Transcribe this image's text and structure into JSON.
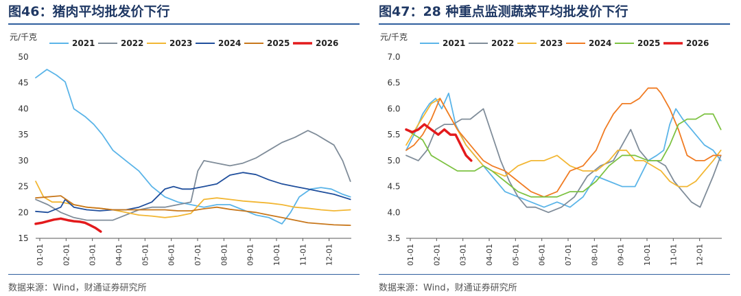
{
  "source_note": "数据来源：Wind，财通证券研究所",
  "chart_data": [
    {
      "type": "line",
      "title": "图46：猪肉平均批发价下行",
      "ylabel": "元/千克",
      "xlabel": "",
      "ylim": [
        15,
        50
      ],
      "yticks": [
        "15",
        "20",
        "25",
        "30",
        "35",
        "40",
        "45",
        "50"
      ],
      "xticks": [
        "01-01",
        "02-01",
        "03-01",
        "04-01",
        "05-01",
        "06-01",
        "07-01",
        "08-01",
        "09-01",
        "10-01",
        "11-01",
        "12-01"
      ],
      "legend_position": "top",
      "series": [
        {
          "name": "2021",
          "color": "#5ab4e8",
          "x": [
            1,
            14,
            25,
            35,
            45,
            58,
            68,
            78,
            90,
            105,
            120,
            135,
            150,
            165,
            180,
            195,
            210,
            225,
            240,
            255,
            270,
            285,
            295,
            305,
            318,
            330,
            342,
            355,
            364
          ],
          "values": [
            46,
            47.6,
            46.5,
            45.2,
            40,
            38.5,
            37,
            35,
            32,
            30,
            28,
            25,
            23,
            22,
            21.5,
            21,
            21.5,
            21.5,
            20.5,
            19.5,
            19,
            17.8,
            20,
            23,
            24.5,
            24.8,
            24.5,
            23.5,
            23
          ]
        },
        {
          "name": "2022",
          "color": "#7f8c99",
          "x": [
            1,
            15,
            30,
            45,
            60,
            75,
            90,
            105,
            120,
            135,
            150,
            165,
            180,
            188,
            195,
            210,
            225,
            240,
            255,
            270,
            285,
            300,
            315,
            325,
            335,
            345,
            355,
            364
          ],
          "values": [
            22.5,
            21.5,
            20,
            19,
            18.5,
            18.5,
            18.5,
            19.5,
            20.5,
            21,
            21,
            21.5,
            22,
            28,
            30,
            29.5,
            29,
            29.5,
            30.5,
            32,
            33.5,
            34.5,
            35.8,
            35,
            34,
            33,
            30,
            26
          ]
        },
        {
          "name": "2023",
          "color": "#f2b632",
          "x": [
            1,
            10,
            20,
            30,
            45,
            60,
            75,
            90,
            105,
            120,
            135,
            150,
            165,
            180,
            195,
            210,
            225,
            240,
            255,
            270,
            285,
            300,
            315,
            330,
            345,
            364
          ],
          "values": [
            26,
            23,
            22,
            22,
            21.5,
            21,
            20.8,
            20.5,
            20,
            19.5,
            19.3,
            19,
            19.3,
            19.8,
            22.5,
            22.8,
            22.5,
            22.2,
            22,
            21.8,
            21.5,
            21,
            20.8,
            20.5,
            20.3,
            20.5
          ]
        },
        {
          "name": "2024",
          "color": "#1f4e9c",
          "x": [
            1,
            15,
            30,
            35,
            45,
            60,
            75,
            90,
            105,
            120,
            135,
            150,
            160,
            170,
            180,
            195,
            210,
            225,
            240,
            255,
            270,
            285,
            300,
            315,
            330,
            345,
            364
          ],
          "values": [
            20.2,
            20,
            21,
            22.5,
            21,
            20.5,
            20.3,
            20.5,
            20.5,
            21,
            22,
            24.5,
            25,
            24.5,
            24.5,
            25,
            25.5,
            27.2,
            27.7,
            27.3,
            26.3,
            25.5,
            25,
            24.5,
            24,
            23.5,
            22.5
          ]
        },
        {
          "name": "2025",
          "color": "#c8771b",
          "x": [
            1,
            15,
            30,
            45,
            60,
            75,
            90,
            105,
            120,
            135,
            150,
            165,
            180,
            195,
            210,
            225,
            240,
            255,
            270,
            285,
            300,
            315,
            330,
            345,
            364
          ],
          "values": [
            22.8,
            23,
            23.2,
            21.5,
            21,
            20.8,
            20.5,
            20.5,
            20.5,
            20.5,
            20.5,
            20.3,
            20.3,
            20.7,
            21,
            20.6,
            20.3,
            20,
            19.5,
            19,
            18.5,
            18,
            17.8,
            17.6,
            17.5
          ]
        },
        {
          "name": "2026",
          "color": "#e31a1c",
          "x": [
            1,
            8,
            15,
            22,
            30,
            38,
            45,
            52,
            58,
            64,
            70,
            76
          ],
          "values": [
            17.8,
            18,
            18.3,
            18.6,
            18.8,
            18.5,
            18.3,
            18.2,
            18,
            17.5,
            17,
            16.3
          ]
        }
      ]
    },
    {
      "type": "line",
      "title": "图47：28 种重点监测蔬菜平均批发价下行",
      "ylabel": "元/千克",
      "xlabel": "",
      "ylim": [
        3.5,
        7.0
      ],
      "yticks": [
        "3.5",
        "4.0",
        "4.5",
        "5.0",
        "5.5",
        "6.0",
        "6.5",
        "7.0"
      ],
      "xticks": [
        "01-01",
        "02-01",
        "03-01",
        "04-01",
        "05-01",
        "06-01",
        "07-01",
        "08-01",
        "09-01",
        "10-01",
        "11-01",
        "12-01"
      ],
      "legend_position": "top",
      "series": [
        {
          "name": "2021",
          "color": "#5ab4e8",
          "x": [
            1,
            10,
            20,
            28,
            35,
            42,
            50,
            58,
            70,
            85,
            100,
            115,
            130,
            145,
            160,
            175,
            190,
            205,
            220,
            235,
            250,
            265,
            280,
            290,
            298,
            305,
            312,
            320,
            330,
            345,
            355,
            364
          ],
          "values": [
            5.2,
            5.5,
            5.9,
            6.1,
            6.2,
            6.0,
            6.3,
            5.7,
            5.3,
            5.0,
            4.7,
            4.4,
            4.3,
            4.2,
            4.1,
            4.2,
            4.1,
            4.3,
            4.7,
            4.6,
            4.5,
            4.5,
            5.0,
            5.1,
            5.2,
            5.7,
            6.0,
            5.8,
            5.6,
            5.3,
            5.2,
            5.0
          ]
        },
        {
          "name": "2022",
          "color": "#7f8c99",
          "x": [
            1,
            15,
            25,
            35,
            45,
            55,
            65,
            75,
            90,
            100,
            110,
            120,
            130,
            140,
            150,
            165,
            180,
            195,
            210,
            225,
            240,
            250,
            260,
            270,
            280,
            290,
            300,
            310,
            320,
            330,
            340,
            355,
            364
          ],
          "values": [
            5.1,
            5.0,
            5.2,
            5.6,
            5.7,
            5.7,
            5.8,
            5.8,
            6.0,
            5.5,
            5.0,
            4.6,
            4.3,
            4.1,
            4.1,
            4.0,
            4.1,
            4.3,
            4.7,
            4.9,
            5.0,
            5.3,
            5.6,
            5.2,
            5.0,
            5.0,
            4.9,
            4.6,
            4.4,
            4.2,
            4.1,
            4.7,
            5.1
          ]
        },
        {
          "name": "2023",
          "color": "#f2b632",
          "x": [
            1,
            15,
            30,
            40,
            50,
            60,
            70,
            80,
            90,
            100,
            115,
            130,
            145,
            160,
            175,
            190,
            205,
            220,
            235,
            245,
            255,
            265,
            275,
            285,
            295,
            305,
            315,
            325,
            335,
            345,
            355,
            364
          ],
          "values": [
            5.3,
            5.7,
            6.1,
            6.2,
            5.9,
            5.6,
            5.3,
            5.1,
            4.9,
            4.8,
            4.7,
            4.9,
            5.0,
            5.0,
            5.1,
            4.9,
            4.8,
            4.8,
            5.0,
            5.2,
            5.2,
            5.0,
            5.0,
            4.9,
            4.8,
            4.6,
            4.5,
            4.5,
            4.6,
            4.8,
            5.0,
            5.2
          ]
        },
        {
          "name": "2024",
          "color": "#f07b22",
          "x": [
            1,
            10,
            20,
            30,
            40,
            50,
            60,
            70,
            80,
            90,
            100,
            115,
            130,
            145,
            160,
            175,
            190,
            205,
            220,
            230,
            240,
            250,
            260,
            270,
            280,
            290,
            295,
            305,
            315,
            325,
            335,
            345,
            355,
            364
          ],
          "values": [
            5.2,
            5.3,
            5.5,
            5.8,
            6.2,
            5.9,
            5.6,
            5.4,
            5.2,
            5.0,
            4.9,
            4.8,
            4.6,
            4.4,
            4.3,
            4.4,
            4.8,
            4.9,
            5.2,
            5.6,
            5.9,
            6.1,
            6.1,
            6.2,
            6.4,
            6.4,
            6.3,
            6.0,
            5.6,
            5.1,
            5.0,
            5.0,
            5.1,
            5.1
          ]
        },
        {
          "name": "2025",
          "color": "#7dc242",
          "x": [
            1,
            10,
            20,
            30,
            40,
            50,
            60,
            70,
            80,
            90,
            100,
            115,
            130,
            145,
            160,
            175,
            190,
            205,
            220,
            235,
            250,
            265,
            280,
            295,
            305,
            315,
            325,
            335,
            345,
            355,
            364
          ],
          "values": [
            5.6,
            5.5,
            5.4,
            5.1,
            5.0,
            4.9,
            4.8,
            4.8,
            4.8,
            4.9,
            4.8,
            4.6,
            4.4,
            4.3,
            4.3,
            4.3,
            4.4,
            4.4,
            4.6,
            4.9,
            5.1,
            5.1,
            5.0,
            5.0,
            5.3,
            5.7,
            5.8,
            5.8,
            5.9,
            5.9,
            5.6
          ]
        },
        {
          "name": "2026",
          "color": "#e31a1c",
          "x": [
            1,
            8,
            15,
            22,
            30,
            38,
            45,
            52,
            58,
            64,
            70,
            76
          ],
          "values": [
            5.6,
            5.55,
            5.6,
            5.7,
            5.6,
            5.5,
            5.6,
            5.5,
            5.5,
            5.3,
            5.1,
            5.0
          ]
        }
      ]
    }
  ]
}
